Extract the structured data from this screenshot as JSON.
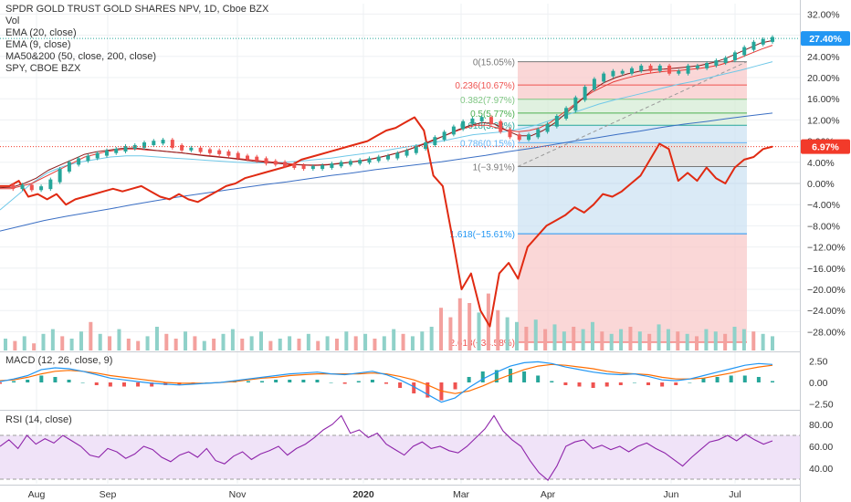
{
  "symbol_title": "SPDR GOLD TRUST GOLD SHARES NPV, 1D, Cboe BZX",
  "indicators": [
    "Vol",
    "EMA (20, close)",
    "EMA (9, close)",
    "MA50&200 (50, close, 200, close)",
    "SPY, CBOE BZX"
  ],
  "macd_title": "MACD (12, 26, close, 9)",
  "rsi_title": "RSI (14, close)",
  "colors": {
    "up": "#26a69a",
    "down": "#ef5350",
    "spy": "#e02a12",
    "ema20": "#e53935",
    "ema9": "#8b1a1a",
    "ma50": "#6fc8e8",
    "ma200": "#3b6fc4",
    "gld_badge": "#2196f3",
    "spy_badge": "#f23a2a",
    "rsi_line": "#8e24aa",
    "rsi_band": "#f0e3f8",
    "macd_line": "#2196f3",
    "signal_line": "#ff6d00"
  },
  "chart_data": [
    {
      "type": "line",
      "panel": "price",
      "y_unit": "percent",
      "ylim": [
        -30,
        32
      ],
      "y_ticks": [
        "32.00%",
        "28.00%",
        "24.00%",
        "20.00%",
        "16.00%",
        "12.00%",
        "8.00%",
        "4.00%",
        "0.00%",
        "−4.00%",
        "−8.00%",
        "−12.00%",
        "−16.00%",
        "−20.00%",
        "−24.00%",
        "−28.00%"
      ],
      "x_ticks": [
        "Aug",
        "Sep",
        "Nov",
        "2020",
        "Mar",
        "Apr",
        "Jun",
        "Jul"
      ],
      "series": [
        {
          "name": "SPDR GOLD TRUST GOLD SHARES NPV",
          "last_label": "27.40%",
          "last_value": 27.4,
          "values": [
            -0.5,
            -0.8,
            -0.5,
            -1,
            -0.8,
            0.5,
            2.5,
            3.8,
            4.5,
            5,
            5.5,
            6,
            6.3,
            6.8,
            7,
            7.5,
            7.8,
            8,
            7,
            6.5,
            6.5,
            6.2,
            6,
            5.8,
            5.5,
            5,
            4.8,
            4.5,
            4,
            3.8,
            3.5,
            3.2,
            3,
            3,
            3.2,
            3.5,
            3.8,
            4,
            4.2,
            4.5,
            4.8,
            5,
            5.5,
            6,
            6.8,
            7.5,
            8.5,
            9.5,
            10.5,
            11.5,
            12,
            12.3,
            11.5,
            10,
            9,
            8.5,
            9,
            10,
            11,
            12.5,
            14,
            16,
            18,
            19.5,
            20.5,
            21,
            21,
            21.5,
            22,
            21.5,
            22,
            21,
            21,
            22,
            22,
            22.5,
            23,
            23.5,
            24.5,
            25.5,
            26.5,
            27,
            27.4
          ]
        },
        {
          "name": "EMA (20, close)",
          "values": [
            -1,
            -1,
            -0.5,
            0,
            1,
            2,
            3,
            4,
            5,
            5.5,
            6,
            6.3,
            6.5,
            6.5,
            6.3,
            6.2,
            6,
            5.8,
            5.6,
            5.4,
            5.2,
            5,
            4.8,
            4.6,
            4.4,
            4.2,
            4,
            3.8,
            3.6,
            3.5,
            3.5,
            3.6,
            3.8,
            4,
            4.3,
            4.6,
            5,
            5.5,
            6,
            6.7,
            7.5,
            8.3,
            9,
            9.8,
            10.5,
            11,
            11,
            10.5,
            10,
            9.8,
            10,
            10.5,
            11.5,
            13,
            14.5,
            16,
            17.3,
            18.3,
            19.2,
            19.8,
            20.3,
            20.7,
            21,
            21.2,
            21.3,
            21.5,
            21.7,
            22,
            22.4,
            23,
            23.8,
            24.6,
            25.4,
            26.1
          ]
        },
        {
          "name": "EMA (9, close)",
          "values": [
            -0.8,
            -0.7,
            0,
            1,
            2.5,
            3.5,
            4.5,
            5.5,
            6,
            6.3,
            6.6,
            6.7,
            6.5,
            6.2,
            6,
            5.8,
            5.5,
            5.2,
            5,
            4.8,
            4.5,
            4.2,
            4,
            3.8,
            3.6,
            3.5,
            3.4,
            3.5,
            3.7,
            4,
            4.3,
            4.7,
            5.2,
            5.8,
            6.5,
            7.3,
            8.2,
            9.2,
            10.2,
            11,
            11.5,
            11.2,
            10,
            9,
            9,
            10,
            11.5,
            13.5,
            15.5,
            17.5,
            19,
            20,
            20.7,
            21.2,
            21.5,
            21.6,
            21.8,
            22,
            22.3,
            22.8,
            23.5,
            24.5,
            25.5,
            26.5,
            27
          ]
        },
        {
          "name": "MA50",
          "values": [
            -5,
            -2.5,
            0,
            2,
            3.2,
            4,
            4.5,
            5,
            5.2,
            5.2,
            5,
            4.8,
            4.6,
            4.4,
            4.2,
            4,
            3.9,
            3.9,
            4,
            4.2,
            4.5,
            4.8,
            5.2,
            5.6,
            6,
            6.5,
            7,
            7.5,
            8,
            8.6,
            9.2,
            9.5,
            9.8,
            10.3,
            11,
            12,
            13,
            14,
            15,
            15.8,
            16.5,
            17.2,
            18,
            18.7,
            19.3,
            20,
            20.7,
            21.4,
            22.2,
            23
          ]
        },
        {
          "name": "MA200",
          "values": [
            -9,
            -8,
            -7,
            -6.2,
            -5.5,
            -4.8,
            -4,
            -3.3,
            -2.6,
            -2,
            -1.4,
            -0.8,
            -0.2,
            0.3,
            0.9,
            1.5,
            2,
            2.6,
            3.1,
            3.6,
            4.1,
            4.7,
            5.3,
            6,
            6.6,
            7.3,
            8,
            8.6,
            9.3,
            9.9,
            10.6,
            11.2,
            11.7,
            12.3,
            12.8,
            13.3
          ]
        },
        {
          "name": "SPY, CBOE BZX",
          "last_label": "6.97%",
          "last_value": 6.97,
          "values": [
            -0.5,
            -0.5,
            0.5,
            -2.5,
            -2,
            -3,
            -2,
            -4,
            -3,
            -2.5,
            -2,
            -1.5,
            -1,
            -1.5,
            -1,
            -0.5,
            -1.5,
            -2.5,
            -3,
            -2,
            -3,
            -3.5,
            -2.5,
            -1.5,
            -0.5,
            0,
            1,
            1.5,
            2,
            2.5,
            3,
            3.5,
            4.5,
            5,
            5.5,
            6,
            6.5,
            7,
            7.5,
            8,
            9,
            10,
            10.5,
            11.5,
            12.5,
            10,
            1.5,
            -0.5,
            -10,
            -20,
            -17,
            -24,
            -27,
            -17,
            -15,
            -18,
            -12,
            -10,
            -8,
            -7,
            -6,
            -4.5,
            -5.5,
            -4,
            -2,
            -2.5,
            -1.5,
            0,
            1.5,
            4.5,
            7.5,
            6.5,
            0.5,
            2,
            0.5,
            3,
            1,
            0,
            3,
            4.5,
            5,
            6.5,
            6.97
          ]
        }
      ],
      "fibonacci_levels": [
        {
          "label": "0(15.05%)",
          "value": 23.0
        },
        {
          "label": "0.236(10.67%)",
          "value": 18.6
        },
        {
          "label": "0.382(7.97%)",
          "value": 15.9
        },
        {
          "label": "0.5(5.77%)",
          "value": 13.3
        },
        {
          "label": "0.618(3.33%)",
          "value": 11.0
        },
        {
          "label": "0.786(0.15%)",
          "value": 7.7
        },
        {
          "label": "1(−3.91%)",
          "value": 3.2
        },
        {
          "label": "1.618(−15.61%)",
          "value": -9.5
        },
        {
          "label": "2.618(−34.58%)",
          "value": -30.0
        }
      ]
    },
    {
      "type": "bar",
      "panel": "volume",
      "title": "Vol",
      "values": [
        5,
        4,
        6,
        3,
        7,
        9,
        6,
        5,
        8,
        12,
        7,
        6,
        9,
        5,
        4,
        6,
        10,
        7,
        5,
        8,
        6,
        4,
        5,
        7,
        9,
        5,
        6,
        8,
        4,
        5,
        6,
        5,
        7,
        4,
        6,
        5,
        8,
        6,
        7,
        5,
        6,
        9,
        7,
        6,
        8,
        10,
        18,
        14,
        22,
        20,
        16,
        24,
        17,
        14,
        12,
        10,
        13,
        9,
        11,
        8,
        10,
        9,
        12,
        8,
        7,
        9,
        10,
        8,
        7,
        11,
        9,
        8,
        7,
        6,
        9,
        8,
        7,
        10,
        9,
        8,
        7,
        6
      ],
      "directions": [
        "u",
        "d",
        "u",
        "d",
        "u",
        "u",
        "d",
        "u",
        "u",
        "d",
        "u",
        "d",
        "u",
        "d",
        "d",
        "u",
        "u",
        "d",
        "d",
        "u",
        "d",
        "u",
        "d",
        "u",
        "u",
        "d",
        "u",
        "u",
        "d",
        "u",
        "u",
        "d",
        "u",
        "d",
        "u",
        "d",
        "u",
        "d",
        "u",
        "d",
        "u",
        "u",
        "d",
        "u",
        "u",
        "u",
        "d",
        "d",
        "d",
        "d",
        "u",
        "d",
        "d",
        "u",
        "u",
        "d",
        "u",
        "d",
        "u",
        "u",
        "d",
        "u",
        "u",
        "d",
        "u",
        "u",
        "d",
        "u",
        "d",
        "u",
        "u",
        "d",
        "u",
        "d",
        "u",
        "u",
        "d",
        "u",
        "u",
        "d",
        "u",
        "u"
      ]
    },
    {
      "type": "line",
      "panel": "macd",
      "title": "MACD (12, 26, close, 9)",
      "ylim": [
        -3.2,
        3.4
      ],
      "y_ticks": [
        "2.50",
        "0.00",
        "−2.50"
      ],
      "series": [
        {
          "name": "MACD",
          "values": [
            0.1,
            0.4,
            0.8,
            1.5,
            1.7,
            1.6,
            1.3,
            0.9,
            0.5,
            0.3,
            0.1,
            -0.1,
            -0.2,
            -0.3,
            -0.2,
            -0.1,
            0,
            0.2,
            0.4,
            0.6,
            0.8,
            1,
            1.1,
            1.2,
            1,
            0.9,
            1.1,
            1.3,
            0.9,
            0.3,
            -0.5,
            -1.4,
            -2.3,
            -1.8,
            -0.6,
            0.4,
            1.2,
            1.9,
            2.3,
            2.4,
            2.2,
            1.8,
            1.5,
            1.2,
            1,
            0.9,
            1,
            0.7,
            0.3,
            0.2,
            0.4,
            0.8,
            1.2,
            1.6,
            2,
            2.2,
            2.1
          ]
        },
        {
          "name": "Signal",
          "values": [
            0.2,
            0.3,
            0.6,
            1,
            1.3,
            1.4,
            1.3,
            1.1,
            0.8,
            0.6,
            0.4,
            0.2,
            0,
            -0.1,
            -0.1,
            -0.1,
            0,
            0.1,
            0.3,
            0.5,
            0.6,
            0.8,
            0.9,
            1,
            1,
            1,
            1,
            1.1,
            1,
            0.7,
            0.3,
            -0.3,
            -1,
            -1.3,
            -1,
            -0.4,
            0.3,
            0.9,
            1.5,
            1.9,
            2.1,
            2,
            1.8,
            1.6,
            1.3,
            1.1,
            1,
            0.9,
            0.6,
            0.4,
            0.4,
            0.5,
            0.8,
            1.1,
            1.5,
            1.8,
            2
          ]
        }
      ]
    },
    {
      "type": "line",
      "panel": "rsi",
      "title": "RSI (14, close)",
      "ylim": [
        25,
        92
      ],
      "band": [
        30,
        70
      ],
      "y_ticks": [
        "80.00",
        "60.00",
        "40.00"
      ],
      "series": [
        {
          "name": "RSI",
          "values": [
            60,
            66,
            58,
            70,
            62,
            67,
            63,
            70,
            65,
            60,
            52,
            50,
            58,
            55,
            49,
            53,
            60,
            57,
            50,
            46,
            52,
            55,
            50,
            58,
            47,
            44,
            51,
            55,
            48,
            53,
            56,
            60,
            52,
            58,
            62,
            68,
            75,
            80,
            88,
            72,
            75,
            68,
            72,
            62,
            57,
            52,
            60,
            64,
            58,
            60,
            56,
            54,
            60,
            68,
            76,
            88,
            74,
            66,
            60,
            47,
            36,
            29,
            42,
            60,
            64,
            66,
            58,
            61,
            57,
            60,
            55,
            60,
            63,
            58,
            54,
            48,
            42,
            50,
            57,
            64,
            66,
            70,
            65,
            71,
            66,
            62,
            65
          ]
        }
      ]
    }
  ]
}
